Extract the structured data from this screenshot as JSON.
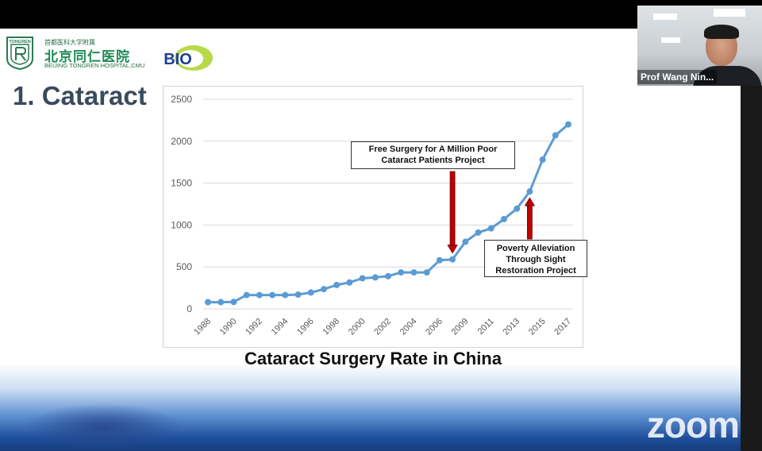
{
  "slide": {
    "hospital_line1": "首都医科大学附属",
    "hospital_name_cn": "北京同仁医院",
    "hospital_name_en": "BEIJING TONGREN HOSPITAL,CMU",
    "seal_text": "TONGREN",
    "bio_logo_text": "BIO",
    "title": "1. Cataract",
    "caption": "Cataract Surgery Rate in China",
    "callout_1": "Free Surgery for A Million Poor Cataract Patients Project",
    "callout_2": "Poverty Alleviation Through Sight Restoration Project"
  },
  "chart_data": {
    "type": "line",
    "title": "",
    "xlabel": "",
    "ylabel": "",
    "ylim": [
      0,
      2500
    ],
    "yticks": [
      0,
      500,
      1000,
      1500,
      2000,
      2500
    ],
    "x_tick_labels": [
      "1988",
      "1990",
      "1992",
      "1994",
      "1996",
      "1998",
      "2000",
      "2002",
      "2004",
      "2006",
      "2009",
      "2011",
      "2013",
      "2015",
      "2017"
    ],
    "grid": true,
    "series": [
      {
        "color": "#5b9bd5",
        "points": [
          {
            "x": "1988",
            "y": 80
          },
          {
            "x": "1989",
            "y": 80
          },
          {
            "x": "1990",
            "y": 83
          },
          {
            "x": "1991",
            "y": 165
          },
          {
            "x": "1992",
            "y": 165
          },
          {
            "x": "1993",
            "y": 165
          },
          {
            "x": "1994",
            "y": 165
          },
          {
            "x": "1995",
            "y": 170
          },
          {
            "x": "1996",
            "y": 195
          },
          {
            "x": "1997",
            "y": 235
          },
          {
            "x": "1998",
            "y": 285
          },
          {
            "x": "1999",
            "y": 315
          },
          {
            "x": "2000",
            "y": 365
          },
          {
            "x": "2001",
            "y": 375
          },
          {
            "x": "2002",
            "y": 390
          },
          {
            "x": "2003",
            "y": 435
          },
          {
            "x": "2004",
            "y": 435
          },
          {
            "x": "2005",
            "y": 435
          },
          {
            "x": "2006",
            "y": 580
          },
          {
            "x": "2008",
            "y": 590
          },
          {
            "x": "2009",
            "y": 800
          },
          {
            "x": "2010",
            "y": 910
          },
          {
            "x": "2011",
            "y": 960
          },
          {
            "x": "2012",
            "y": 1070
          },
          {
            "x": "2013",
            "y": 1195
          },
          {
            "x": "2014",
            "y": 1400
          },
          {
            "x": "2015",
            "y": 1780
          },
          {
            "x": "2016",
            "y": 2070
          },
          {
            "x": "2017",
            "y": 2200
          }
        ]
      }
    ],
    "annotations": [
      {
        "text_key": "callout_1",
        "points_to": "2008",
        "arrow_direction": "down",
        "arrow_color": "#c00000"
      },
      {
        "text_key": "callout_2",
        "points_to": "2014",
        "arrow_direction": "up",
        "arrow_color": "#c00000"
      }
    ]
  },
  "video": {
    "participant_name": "Prof Wang Nin..."
  },
  "watermark": "zoom",
  "colors": {
    "line": "#5b9bd5",
    "arrow": "#c00000",
    "title": "#3a4a5e",
    "brand_green": "#1f8a55"
  }
}
